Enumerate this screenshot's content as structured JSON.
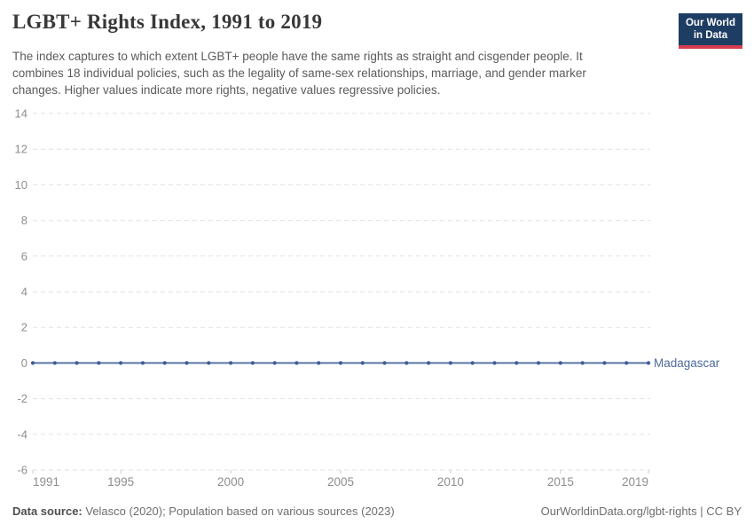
{
  "header": {
    "title": "LGBT+ Rights Index, 1991 to 2019",
    "subtitle_lines": [
      "The index captures to which extent LGBT+ people have the same rights as straight and cisgender people. It",
      "combines 18 individual policies, such as the legality of same-sex relationships, marriage, and gender marker",
      "changes. Higher values indicate more rights, negative values regressive policies."
    ],
    "logo": {
      "line1": "Our World",
      "line2": "in Data",
      "bg_color": "#1d3d63",
      "accent_color": "#d73c4c"
    }
  },
  "chart_data": {
    "type": "line",
    "title": "LGBT+ Rights Index, 1991 to 2019",
    "x": [
      1991,
      1992,
      1993,
      1994,
      1995,
      1996,
      1997,
      1998,
      1999,
      2000,
      2001,
      2002,
      2003,
      2004,
      2005,
      2006,
      2007,
      2008,
      2009,
      2010,
      2011,
      2012,
      2013,
      2014,
      2015,
      2016,
      2017,
      2018,
      2019
    ],
    "series": [
      {
        "name": "Madagascar",
        "color": "#4c6a9c",
        "line_color": "#5b77a9",
        "marker_color": "#3d5c97",
        "values": [
          0,
          0,
          0,
          0,
          0,
          0,
          0,
          0,
          0,
          0,
          0,
          0,
          0,
          0,
          0,
          0,
          0,
          0,
          0,
          0,
          0,
          0,
          0,
          0,
          0,
          0,
          0,
          0,
          0
        ]
      }
    ],
    "xlabel": "",
    "ylabel": "",
    "ylim": [
      -6,
      14
    ],
    "yticks": [
      14,
      12,
      10,
      8,
      6,
      4,
      2,
      0,
      -2,
      -4,
      -6
    ],
    "xticks": [
      1991,
      1995,
      2000,
      2005,
      2010,
      2015,
      2019
    ],
    "grid": "horizontal-dashed",
    "grid_color": "#e2e2e2",
    "axis_text_color": "#8e8e8e",
    "tick_color": "#c9c9c9",
    "legend": "end-of-line-label"
  },
  "footer": {
    "source_label": "Data source:",
    "source_text": " Velasco (2020); Population based on various sources (2023)",
    "right_text": "OurWorldinData.org/lgbt-rights | CC BY"
  }
}
